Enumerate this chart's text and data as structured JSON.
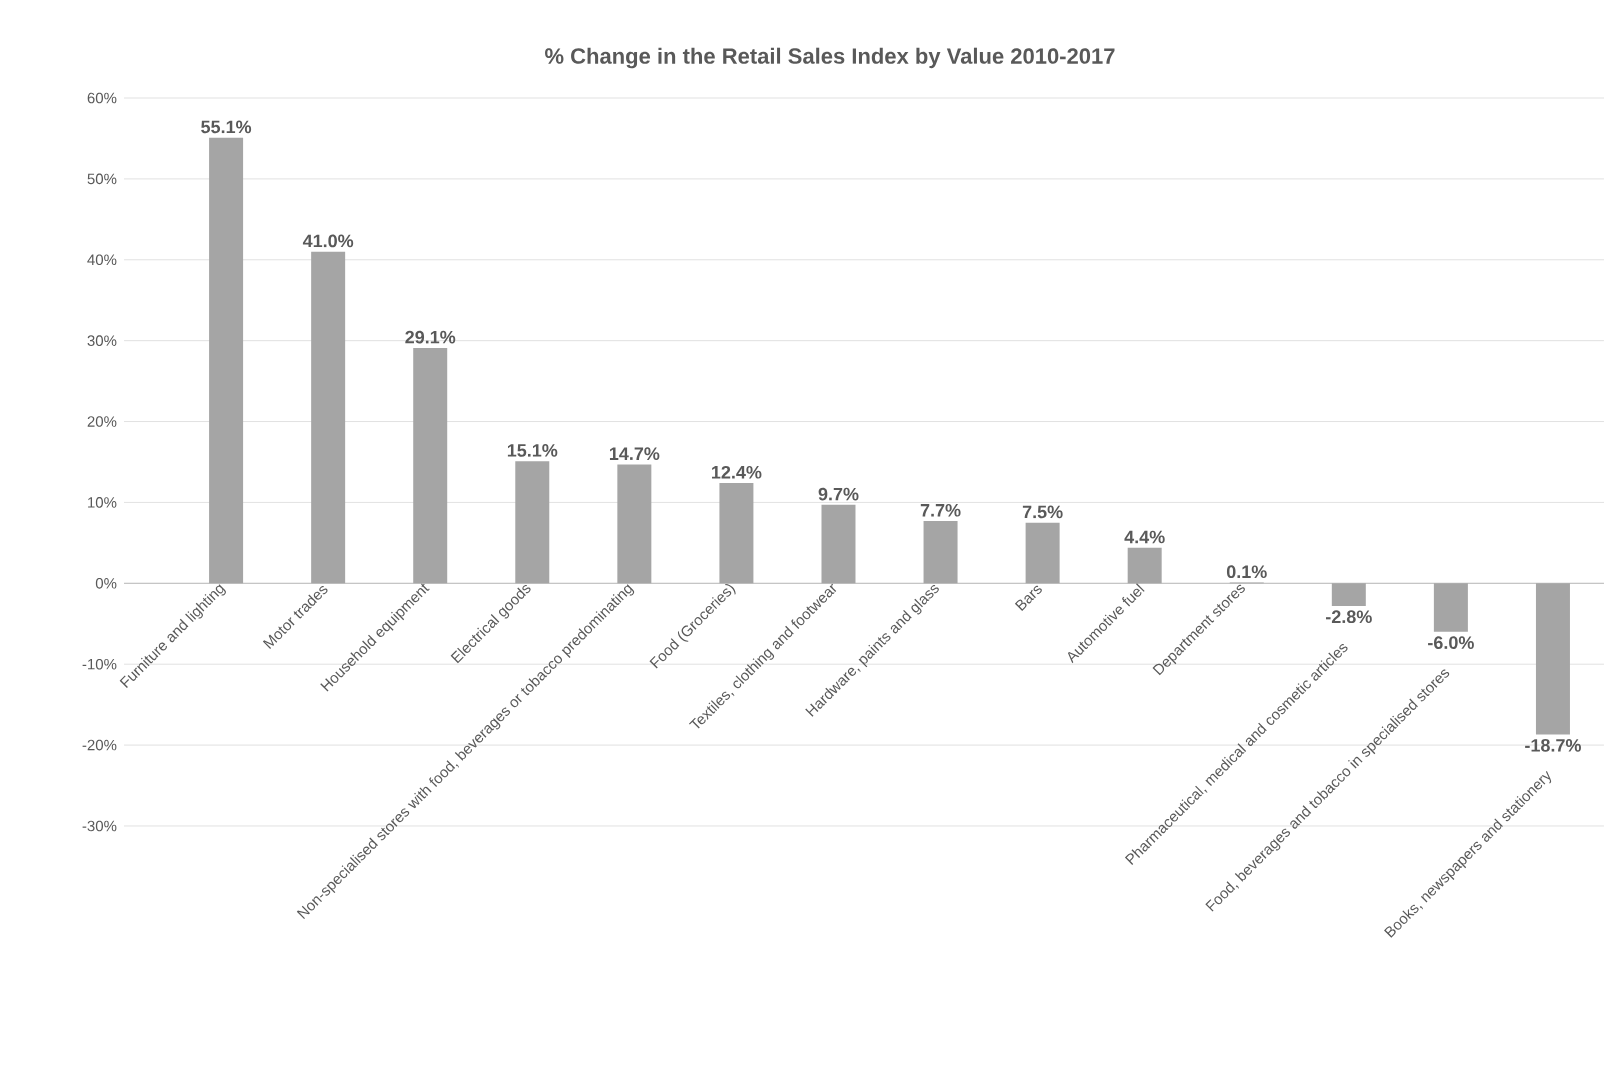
{
  "chart_data": {
    "type": "bar",
    "title": "% Change in the Retail Sales Index by Value 2010-2017",
    "categories": [
      "Furniture and lighting",
      "Motor trades",
      "Household equipment",
      "Electrical goods",
      "Non-specialised stores with food, beverages or tobacco predominating",
      "Food (Groceries)",
      "Textiles, clothing and footwear",
      "Hardware, paints and glass",
      "Bars",
      "Automotive fuel",
      "Department stores",
      "Pharmaceutical, medical and cosmetic articles",
      "Food, beverages and tobacco in specialised stores",
      "Books, newspapers and stationery"
    ],
    "values": [
      55.1,
      41.0,
      29.1,
      15.1,
      14.7,
      12.4,
      9.7,
      7.7,
      7.5,
      4.4,
      0.1,
      -2.8,
      -6.0,
      -18.7
    ],
    "value_labels": [
      "55.1%",
      "41.0%",
      "29.1%",
      "15.1%",
      "14.7%",
      "12.4%",
      "9.7%",
      "7.7%",
      "7.5%",
      "4.4%",
      "0.1%",
      "-2.8%",
      "-6.0%",
      "-18.7%"
    ],
    "color": "#a5a5a5",
    "ylim": [
      -30,
      60
    ],
    "yticks": [
      {
        "value": -30,
        "label": "-30%"
      },
      {
        "value": -20,
        "label": "-20%"
      },
      {
        "value": -10,
        "label": "-10%"
      },
      {
        "value": 0,
        "label": "0%"
      },
      {
        "value": 10,
        "label": "10%"
      },
      {
        "value": 20,
        "label": "20%"
      },
      {
        "value": 30,
        "label": "30%"
      },
      {
        "value": 40,
        "label": "40%"
      },
      {
        "value": 50,
        "label": "50%"
      },
      {
        "value": 60,
        "label": "60%"
      }
    ],
    "grid": "y"
  }
}
